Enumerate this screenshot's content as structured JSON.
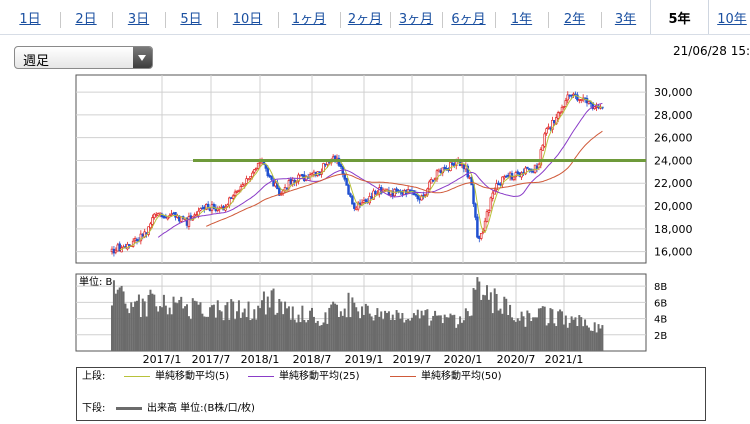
{
  "tabs": [
    {
      "label": "1日",
      "active": false
    },
    {
      "label": "2日",
      "active": false
    },
    {
      "label": "3日",
      "active": false
    },
    {
      "label": "5日",
      "active": false
    },
    {
      "label": "10日",
      "active": false
    },
    {
      "label": "1ヶ月",
      "active": false
    },
    {
      "label": "2ヶ月",
      "active": false
    },
    {
      "label": "3ヶ月",
      "active": false
    },
    {
      "label": "6ヶ月",
      "active": false
    },
    {
      "label": "1年",
      "active": false
    },
    {
      "label": "2年",
      "active": false
    },
    {
      "label": "3年",
      "active": false
    },
    {
      "label": "5年",
      "active": true
    },
    {
      "label": "10年",
      "active": false
    }
  ],
  "period_select": {
    "value": "週足"
  },
  "datetime": "21/06/28 15:",
  "colors": {
    "up": "#e02020",
    "down": "#2050d0",
    "ma5": "#b8c23a",
    "ma25": "#8a3cc8",
    "ma50": "#d05a3a",
    "volume": "#6b6b6b",
    "resistance": "#6e9a3a",
    "grid": "#d0d0d0"
  },
  "chart_data": {
    "type": "candlestick",
    "xlabel": "",
    "ylabel": "",
    "x_ticks": [
      "2017/1",
      "2017/7",
      "2018/1",
      "2018/7",
      "2019/1",
      "2019/7",
      "2020/1",
      "2020/7",
      "2021/1"
    ],
    "y_ticks": [
      16000,
      18000,
      20000,
      22000,
      24000,
      26000,
      28000,
      30000
    ],
    "y_tick_labels": [
      "16,000",
      "18,000",
      "20,000",
      "22,000",
      "24,000",
      "26,000",
      "28,000",
      "30,000"
    ],
    "ylim": [
      15000,
      31500
    ],
    "horizontal_line": 24000,
    "grid": true,
    "price": [
      {
        "date": "2016/7",
        "value": 16000
      },
      {
        "date": "2016/9",
        "value": 16700
      },
      {
        "date": "2016/11",
        "value": 17500
      },
      {
        "date": "2016/12",
        "value": 19200
      },
      {
        "date": "2017/2",
        "value": 19300
      },
      {
        "date": "2017/4",
        "value": 18600
      },
      {
        "date": "2017/6",
        "value": 20000
      },
      {
        "date": "2017/8",
        "value": 19600
      },
      {
        "date": "2017/10",
        "value": 21500
      },
      {
        "date": "2017/12",
        "value": 22900
      },
      {
        "date": "2018/1",
        "value": 23900
      },
      {
        "date": "2018/3",
        "value": 21200
      },
      {
        "date": "2018/5",
        "value": 22400
      },
      {
        "date": "2018/7",
        "value": 22500
      },
      {
        "date": "2018/9",
        "value": 23800
      },
      {
        "date": "2018/10",
        "value": 24200
      },
      {
        "date": "2018/11",
        "value": 21900
      },
      {
        "date": "2018/12",
        "value": 20000
      },
      {
        "date": "2019/1",
        "value": 20300
      },
      {
        "date": "2019/3",
        "value": 21300
      },
      {
        "date": "2019/5",
        "value": 21100
      },
      {
        "date": "2019/7",
        "value": 21600
      },
      {
        "date": "2019/8",
        "value": 20500
      },
      {
        "date": "2019/10",
        "value": 22900
      },
      {
        "date": "2019/12",
        "value": 23700
      },
      {
        "date": "2020/1",
        "value": 23800
      },
      {
        "date": "2020/2",
        "value": 22500
      },
      {
        "date": "2020/3",
        "value": 16600
      },
      {
        "date": "2020/4",
        "value": 19300
      },
      {
        "date": "2020/5",
        "value": 21800
      },
      {
        "date": "2020/6",
        "value": 22500
      },
      {
        "date": "2020/8",
        "value": 22900
      },
      {
        "date": "2020/10",
        "value": 23300
      },
      {
        "date": "2020/11",
        "value": 26400
      },
      {
        "date": "2020/12",
        "value": 27400
      },
      {
        "date": "2021/2",
        "value": 30000
      },
      {
        "date": "2021/3",
        "value": 29300
      },
      {
        "date": "2021/4",
        "value": 29200
      },
      {
        "date": "2021/5",
        "value": 28400
      },
      {
        "date": "2021/6",
        "value": 28900
      }
    ],
    "ma_periods": [
      5,
      25,
      50
    ],
    "volume_axis": {
      "unit": "B",
      "ticks": [
        2,
        4,
        6,
        8
      ],
      "tick_labels": [
        "2B",
        "4B",
        "6B",
        "8B"
      ],
      "ylim": [
        0,
        9.5
      ]
    },
    "volume": [
      {
        "date": "2016/7",
        "value": 7.6
      },
      {
        "date": "2016/10",
        "value": 5.4
      },
      {
        "date": "2016/12",
        "value": 6.2
      },
      {
        "date": "2017/3",
        "value": 5.8
      },
      {
        "date": "2017/6",
        "value": 5.0
      },
      {
        "date": "2017/9",
        "value": 5.2
      },
      {
        "date": "2017/12",
        "value": 4.8
      },
      {
        "date": "2018/2",
        "value": 6.4
      },
      {
        "date": "2018/5",
        "value": 4.6
      },
      {
        "date": "2018/8",
        "value": 4.2
      },
      {
        "date": "2018/11",
        "value": 5.4
      },
      {
        "date": "2018/12",
        "value": 6.0
      },
      {
        "date": "2019/3",
        "value": 4.4
      },
      {
        "date": "2019/6",
        "value": 3.8
      },
      {
        "date": "2019/9",
        "value": 4.2
      },
      {
        "date": "2019/12",
        "value": 3.6
      },
      {
        "date": "2020/2",
        "value": 5.6
      },
      {
        "date": "2020/3",
        "value": 8.6
      },
      {
        "date": "2020/5",
        "value": 6.0
      },
      {
        "date": "2020/8",
        "value": 4.0
      },
      {
        "date": "2020/11",
        "value": 4.4
      },
      {
        "date": "2021/2",
        "value": 3.8
      },
      {
        "date": "2021/4",
        "value": 3.2
      },
      {
        "date": "2021/6",
        "value": 3.0
      }
    ]
  },
  "volume_panel": {
    "unit_label": "単位: B"
  },
  "legend": {
    "upper_label": "上段:",
    "ma5_label": "単純移動平均(5)",
    "ma25_label": "単純移動平均(25)",
    "ma50_label": "単純移動平均(50)",
    "lower_label": "下段:",
    "volume_label": "出来高 単位:(B株/口/枚)"
  }
}
